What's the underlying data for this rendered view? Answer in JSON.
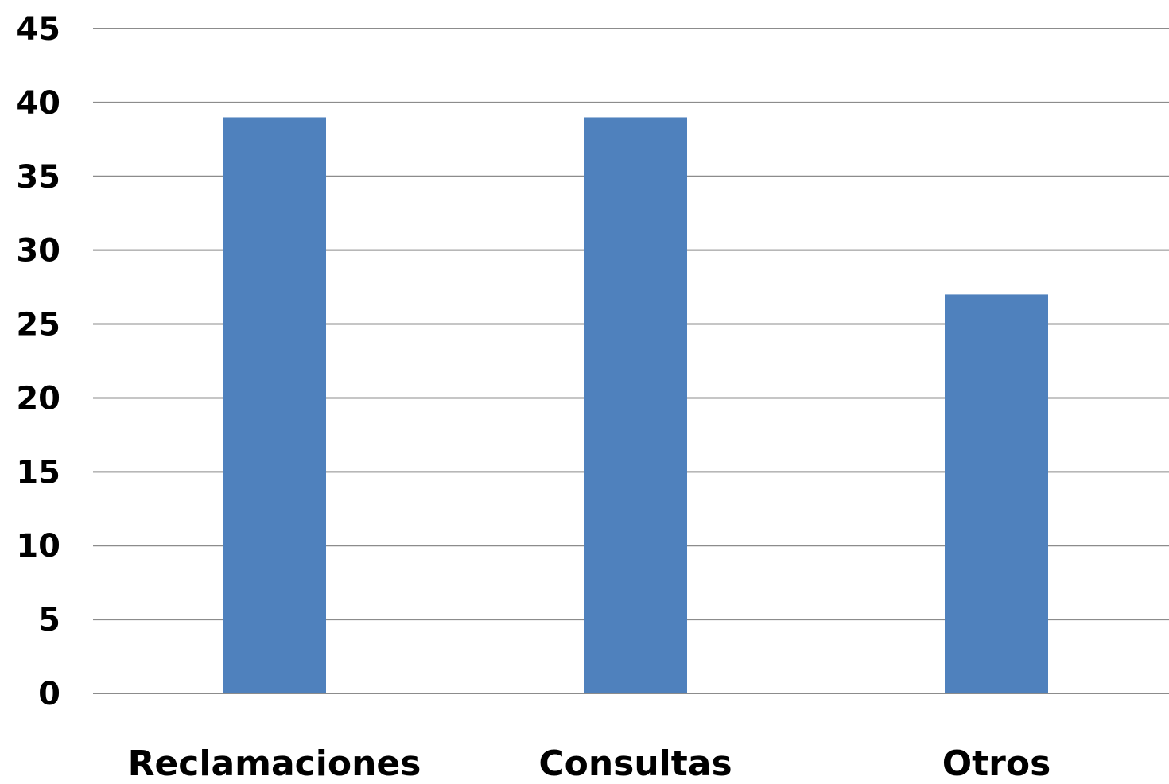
{
  "colors": {
    "bar": "#4f81bd",
    "grid": "#8c8c8c",
    "text": "#000000"
  },
  "chart_data": {
    "type": "bar",
    "categories": [
      "Reclamaciones",
      "Consultas",
      "Otros"
    ],
    "values": [
      39,
      39,
      27
    ],
    "title": "",
    "xlabel": "",
    "ylabel": "",
    "ylim": [
      0,
      45
    ],
    "yticks": [
      "0",
      "5",
      "10",
      "15",
      "20",
      "25",
      "30",
      "35",
      "40",
      "45"
    ],
    "grid": true,
    "legend": "none"
  }
}
